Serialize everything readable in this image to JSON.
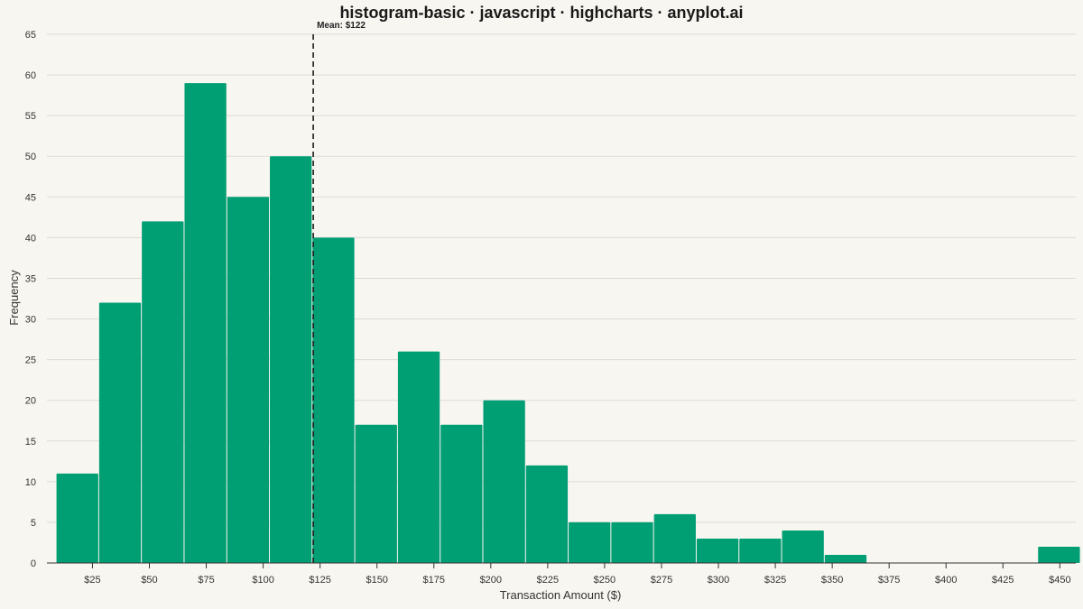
{
  "chart_data": {
    "type": "bar",
    "title": "histogram-basic · javascript · highcharts · anyplot.ai",
    "xlabel": "Transaction Amount ($)",
    "ylabel": "Frequency",
    "bin_width": 18.75,
    "x_range": [
      5,
      457
    ],
    "ylim": [
      0,
      65
    ],
    "y_ticks": [
      0,
      5,
      10,
      15,
      20,
      25,
      30,
      35,
      40,
      45,
      50,
      55,
      60,
      65
    ],
    "x_ticks": [
      {
        "value": 25,
        "label": "$25"
      },
      {
        "value": 50,
        "label": "$50"
      },
      {
        "value": 75,
        "label": "$75"
      },
      {
        "value": 100,
        "label": "$100"
      },
      {
        "value": 125,
        "label": "$125"
      },
      {
        "value": 150,
        "label": "$150"
      },
      {
        "value": 175,
        "label": "$175"
      },
      {
        "value": 200,
        "label": "$200"
      },
      {
        "value": 225,
        "label": "$225"
      },
      {
        "value": 250,
        "label": "$250"
      },
      {
        "value": 275,
        "label": "$275"
      },
      {
        "value": 300,
        "label": "$300"
      },
      {
        "value": 325,
        "label": "$325"
      },
      {
        "value": 350,
        "label": "$350"
      },
      {
        "value": 375,
        "label": "$375"
      },
      {
        "value": 400,
        "label": "$400"
      },
      {
        "value": 425,
        "label": "$425"
      },
      {
        "value": 450,
        "label": "$450"
      }
    ],
    "bin_starts": [
      9.0,
      27.75,
      46.5,
      65.25,
      84.0,
      102.75,
      121.5,
      140.25,
      159.0,
      177.75,
      196.5,
      215.25,
      234.0,
      252.75,
      271.5,
      290.25,
      309.0,
      327.75,
      346.5,
      365.25,
      384.0,
      402.75,
      421.5,
      440.25
    ],
    "values": [
      11,
      32,
      42,
      59,
      45,
      50,
      40,
      17,
      26,
      17,
      20,
      12,
      5,
      5,
      6,
      3,
      3,
      4,
      1,
      0,
      0,
      0,
      0,
      2
    ],
    "mean": 122,
    "mean_label": "Mean: $122",
    "grid": true,
    "legend": "none",
    "colors": {
      "bar": "#009E73",
      "background": "#F8F6F0",
      "grid": "#DDDBD5",
      "mean_line": "#1a1a1a"
    }
  }
}
